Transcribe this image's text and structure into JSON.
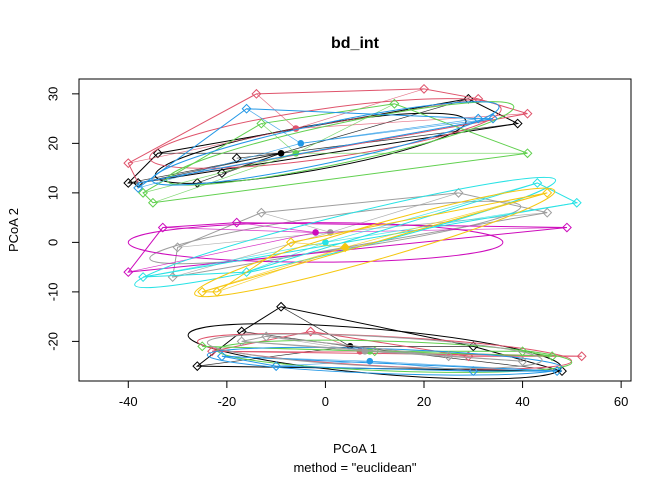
{
  "chart_data": {
    "type": "scatter",
    "title": "bd_int",
    "xlabel": "PCoA 1",
    "ylabel": "PCoA 2",
    "subtitle": "method = \"euclidean\"",
    "xlim": [
      -50,
      62
    ],
    "ylim": [
      -28,
      33
    ],
    "xticks": [
      -40,
      -20,
      0,
      20,
      40,
      60
    ],
    "yticks": [
      -20,
      -10,
      0,
      10,
      20,
      30
    ],
    "grid": false,
    "legend": "none",
    "clusters": [
      {
        "color": "#000000",
        "centroid": [
          -9,
          18
        ],
        "ellipse": {
          "center": [
            -3,
            19
          ],
          "rx": 32,
          "ry": 4.5,
          "angle_deg": 10
        },
        "hull": [
          [
            -40,
            12
          ],
          [
            -34,
            18
          ],
          [
            29,
            29
          ],
          [
            39,
            24
          ],
          [
            -38,
            12
          ]
        ],
        "points": [
          [
            -40,
            12
          ],
          [
            -34,
            18
          ],
          [
            -26,
            12
          ],
          [
            -21,
            14
          ],
          [
            -18,
            17
          ],
          [
            29,
            29
          ],
          [
            39,
            24
          ],
          [
            -38,
            12
          ]
        ]
      },
      {
        "color": "#df536b",
        "centroid": [
          -6,
          23
        ],
        "ellipse": {
          "center": [
            0,
            22
          ],
          "rx": 36,
          "ry": 5,
          "angle_deg": 8
        },
        "hull": [
          [
            -40,
            16
          ],
          [
            -14,
            30
          ],
          [
            20,
            31
          ],
          [
            31,
            29
          ],
          [
            41,
            26
          ],
          [
            -38,
            12
          ]
        ],
        "points": [
          [
            -40,
            16
          ],
          [
            -14,
            30
          ],
          [
            20,
            31
          ],
          [
            31,
            29
          ],
          [
            41,
            26
          ]
        ]
      },
      {
        "color": "#61d04f",
        "centroid": [
          -6,
          18
        ],
        "ellipse": {
          "center": [
            3,
            20
          ],
          "rx": 36,
          "ry": 4,
          "angle_deg": 12
        },
        "hull": [
          [
            -37,
            10
          ],
          [
            -13,
            24
          ],
          [
            14,
            28
          ],
          [
            41,
            18
          ],
          [
            -35,
            8
          ]
        ],
        "points": [
          [
            -37,
            10
          ],
          [
            -35,
            8
          ],
          [
            -13,
            24
          ],
          [
            14,
            28
          ],
          [
            41,
            18
          ]
        ]
      },
      {
        "color": "#2297e6",
        "centroid": [
          -5,
          20
        ],
        "ellipse": {
          "center": [
            0,
            20
          ],
          "rx": 36,
          "ry": 4,
          "angle_deg": 12
        },
        "hull": [
          [
            -38,
            11
          ],
          [
            -16,
            27
          ],
          [
            31,
            25
          ],
          [
            34,
            25
          ],
          [
            -38,
            12
          ]
        ],
        "points": [
          [
            -38,
            11
          ],
          [
            -16,
            27
          ],
          [
            31,
            25
          ],
          [
            34,
            25
          ]
        ]
      },
      {
        "color": "#9e9e9e",
        "centroid": [
          1,
          2
        ],
        "ellipse": {
          "center": [
            2,
            2
          ],
          "rx": 38,
          "ry": 3.5,
          "angle_deg": 8
        },
        "hull": [
          [
            -30,
            -1
          ],
          [
            -13,
            6
          ],
          [
            27,
            10
          ],
          [
            45,
            6
          ],
          [
            -31,
            -7
          ]
        ],
        "points": [
          [
            -30,
            -1
          ],
          [
            -13,
            6
          ],
          [
            27,
            10
          ],
          [
            45,
            6
          ],
          [
            -31,
            -7
          ]
        ]
      },
      {
        "color": "#cd0bbc",
        "centroid": [
          -2,
          2
        ],
        "ellipse": {
          "center": [
            -2,
            0
          ],
          "rx": 38,
          "ry": 4,
          "angle_deg": 0
        },
        "hull": [
          [
            -40,
            -6
          ],
          [
            -33,
            3
          ],
          [
            -18,
            4
          ],
          [
            49,
            3
          ]
        ],
        "points": [
          [
            -40,
            -6
          ],
          [
            -33,
            3
          ],
          [
            -18,
            4
          ],
          [
            49,
            3
          ]
        ]
      },
      {
        "color": "#28e2e5",
        "centroid": [
          0,
          0
        ],
        "ellipse": {
          "center": [
            4,
            2
          ],
          "rx": 44,
          "ry": 3.5,
          "angle_deg": 14
        },
        "hull": [
          [
            -37,
            -7
          ],
          [
            -16,
            -6
          ],
          [
            43,
            12
          ],
          [
            51,
            8
          ]
        ],
        "points": [
          [
            -37,
            -7
          ],
          [
            -16,
            -6
          ],
          [
            43,
            12
          ],
          [
            51,
            8
          ]
        ]
      },
      {
        "color": "#f5c710",
        "centroid": [
          4,
          -1
        ],
        "ellipse": {
          "center": [
            10,
            0
          ],
          "rx": 38,
          "ry": 3.5,
          "angle_deg": 16
        },
        "hull": [
          [
            -25,
            -10
          ],
          [
            -22,
            -10
          ],
          [
            -7,
            0
          ],
          [
            45,
            10
          ]
        ],
        "points": [
          [
            -25,
            -10
          ],
          [
            -22,
            -10
          ],
          [
            -7,
            0
          ],
          [
            4,
            -1
          ],
          [
            45,
            10
          ]
        ]
      },
      {
        "color": "#000000",
        "centroid": [
          5,
          -21
        ],
        "ellipse": {
          "center": [
            10,
            -22
          ],
          "rx": 38,
          "ry": 4.5,
          "angle_deg": -5
        },
        "hull": [
          [
            -26,
            -25
          ],
          [
            -17,
            -18
          ],
          [
            -9,
            -13
          ],
          [
            30,
            -21
          ],
          [
            48,
            -26
          ]
        ],
        "points": [
          [
            -26,
            -25
          ],
          [
            -17,
            -18
          ],
          [
            -9,
            -13
          ],
          [
            30,
            -21
          ],
          [
            48,
            -26
          ]
        ]
      },
      {
        "color": "#df536b",
        "centroid": [
          7,
          -22
        ],
        "ellipse": {
          "center": [
            12,
            -22
          ],
          "rx": 38,
          "ry": 3,
          "angle_deg": -3
        },
        "hull": [
          [
            -23,
            -22
          ],
          [
            -3,
            -18
          ],
          [
            29,
            -23
          ],
          [
            52,
            -23
          ]
        ],
        "points": [
          [
            -23,
            -22
          ],
          [
            -3,
            -18
          ],
          [
            29,
            -23
          ],
          [
            52,
            -23
          ]
        ]
      },
      {
        "color": "#61d04f",
        "centroid": [
          9,
          -22
        ],
        "ellipse": {
          "center": [
            14,
            -23
          ],
          "rx": 36,
          "ry": 3,
          "angle_deg": -2
        },
        "hull": [
          [
            -25,
            -21
          ],
          [
            10,
            -22
          ],
          [
            40,
            -22
          ],
          [
            46,
            -23
          ]
        ],
        "points": [
          [
            -25,
            -21
          ],
          [
            10,
            -22
          ],
          [
            40,
            -22
          ],
          [
            46,
            -23
          ]
        ]
      },
      {
        "color": "#2297e6",
        "centroid": [
          9,
          -24
        ],
        "ellipse": {
          "center": [
            12,
            -24
          ],
          "rx": 36,
          "ry": 2.5,
          "angle_deg": -2
        },
        "hull": [
          [
            -21,
            -23
          ],
          [
            -10,
            -25
          ],
          [
            30,
            -26
          ],
          [
            47,
            -26
          ]
        ],
        "points": [
          [
            -21,
            -23
          ],
          [
            -10,
            -25
          ],
          [
            30,
            -26
          ],
          [
            47,
            -26
          ]
        ]
      },
      {
        "color": "#9e9e9e",
        "centroid": [
          8,
          -22
        ],
        "ellipse": {
          "center": [
            10,
            -22
          ],
          "rx": 34,
          "ry": 3,
          "angle_deg": -3
        },
        "hull": [
          [
            -17,
            -20
          ],
          [
            -12,
            -19
          ],
          [
            25,
            -23
          ],
          [
            40,
            -24
          ]
        ],
        "points": [
          [
            -17,
            -20
          ],
          [
            -12,
            -19
          ],
          [
            25,
            -23
          ],
          [
            40,
            -24
          ]
        ]
      }
    ]
  }
}
